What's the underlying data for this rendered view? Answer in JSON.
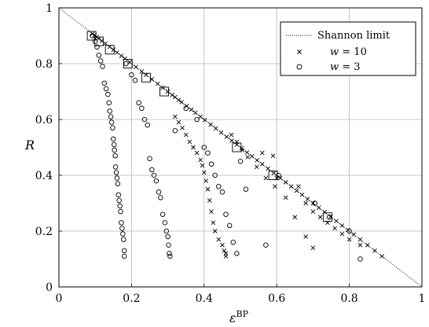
{
  "chart_data": {
    "type": "scatter",
    "title": "",
    "xlabel": "ε",
    "xlabel_sup": "BP",
    "ylabel": "R",
    "xlim": [
      0,
      1
    ],
    "ylim": [
      0,
      1
    ],
    "x_ticks": [
      "0",
      "0.2",
      "0.4",
      "0.6",
      "0.8",
      "1"
    ],
    "y_ticks": [
      "0",
      "0.2",
      "0.4",
      "0.6",
      "0.8",
      "1"
    ],
    "grid": true,
    "legend_position": "top-right",
    "legend": {
      "shannon": "Shannon limit",
      "w10_var": "w",
      "w10_rest": " = 10",
      "w3_var": "w",
      "w3_rest": " = 3"
    },
    "series": [
      {
        "name": "Shannon limit",
        "kind": "line",
        "x": [
          0,
          1
        ],
        "y": [
          1,
          0
        ]
      },
      {
        "name": "w = 10",
        "kind": "marker-x",
        "x": [
          0.092,
          0.098,
          0.104,
          0.11,
          0.118,
          0.128,
          0.14,
          0.15,
          0.16,
          0.172,
          0.182,
          0.195,
          0.212,
          0.228,
          0.24,
          0.256,
          0.272,
          0.286,
          0.3,
          0.312,
          0.32,
          0.33,
          0.338,
          0.352,
          0.365,
          0.376,
          0.39,
          0.402,
          0.418,
          0.432,
          0.447,
          0.462,
          0.476,
          0.49,
          0.503,
          0.518,
          0.532,
          0.546,
          0.56,
          0.576,
          0.592,
          0.61,
          0.625,
          0.64,
          0.655,
          0.67,
          0.685,
          0.7,
          0.716,
          0.732,
          0.748,
          0.764,
          0.78,
          0.796,
          0.812,
          0.83,
          0.85,
          0.87,
          0.89,
          0.32,
          0.33,
          0.34,
          0.35,
          0.36,
          0.37,
          0.38,
          0.39,
          0.395,
          0.4,
          0.405,
          0.41,
          0.415,
          0.42,
          0.425,
          0.43,
          0.44,
          0.45,
          0.455,
          0.46,
          0.46,
          0.475,
          0.49,
          0.505,
          0.52,
          0.545,
          0.57,
          0.595,
          0.625,
          0.65,
          0.68,
          0.7,
          0.56,
          0.59,
          0.6,
          0.66,
          0.68,
          0.7,
          0.72,
          0.74,
          0.76,
          0.78,
          0.8,
          0.83
        ],
        "y": [
          0.907,
          0.902,
          0.896,
          0.89,
          0.882,
          0.872,
          0.86,
          0.85,
          0.84,
          0.828,
          0.818,
          0.805,
          0.788,
          0.772,
          0.76,
          0.744,
          0.728,
          0.714,
          0.7,
          0.688,
          0.68,
          0.67,
          0.662,
          0.648,
          0.635,
          0.624,
          0.61,
          0.598,
          0.582,
          0.568,
          0.553,
          0.538,
          0.524,
          0.51,
          0.497,
          0.482,
          0.468,
          0.454,
          0.44,
          0.424,
          0.408,
          0.39,
          0.375,
          0.36,
          0.345,
          0.33,
          0.315,
          0.3,
          0.284,
          0.268,
          0.252,
          0.236,
          0.22,
          0.204,
          0.188,
          0.17,
          0.15,
          0.13,
          0.11,
          0.61,
          0.59,
          0.57,
          0.545,
          0.52,
          0.5,
          0.48,
          0.455,
          0.435,
          0.41,
          0.38,
          0.35,
          0.31,
          0.27,
          0.23,
          0.2,
          0.17,
          0.15,
          0.13,
          0.11,
          0.12,
          0.545,
          0.52,
          0.49,
          0.465,
          0.43,
          0.39,
          0.36,
          0.32,
          0.25,
          0.18,
          0.14,
          0.48,
          0.47,
          0.39,
          0.36,
          0.3,
          0.27,
          0.25,
          0.23,
          0.21,
          0.19,
          0.17,
          0.15
        ]
      },
      {
        "name": "w = 3",
        "kind": "marker-o",
        "x": [
          0.092,
          0.1,
          0.105,
          0.11,
          0.115,
          0.12,
          0.125,
          0.13,
          0.135,
          0.138,
          0.14,
          0.143,
          0.145,
          0.148,
          0.15,
          0.152,
          0.153,
          0.155,
          0.156,
          0.158,
          0.16,
          0.162,
          0.164,
          0.166,
          0.168,
          0.17,
          0.172,
          0.174,
          0.176,
          0.178,
          0.18,
          0.18,
          0.185,
          0.2,
          0.21,
          0.22,
          0.228,
          0.236,
          0.244,
          0.25,
          0.256,
          0.262,
          0.268,
          0.275,
          0.28,
          0.286,
          0.292,
          0.296,
          0.3,
          0.302,
          0.304,
          0.306,
          0.32,
          0.35,
          0.38,
          0.4,
          0.41,
          0.42,
          0.43,
          0.44,
          0.45,
          0.46,
          0.47,
          0.48,
          0.49,
          0.5,
          0.515,
          0.57,
          0.605,
          0.705,
          0.745,
          0.8,
          0.83
        ],
        "y": [
          0.9,
          0.88,
          0.86,
          0.83,
          0.81,
          0.79,
          0.73,
          0.71,
          0.69,
          0.66,
          0.63,
          0.61,
          0.59,
          0.57,
          0.53,
          0.51,
          0.49,
          0.47,
          0.43,
          0.41,
          0.39,
          0.37,
          0.33,
          0.31,
          0.29,
          0.27,
          0.23,
          0.21,
          0.19,
          0.17,
          0.13,
          0.11,
          0.8,
          0.76,
          0.74,
          0.66,
          0.64,
          0.6,
          0.58,
          0.46,
          0.42,
          0.4,
          0.38,
          0.34,
          0.32,
          0.26,
          0.23,
          0.2,
          0.18,
          0.15,
          0.12,
          0.11,
          0.56,
          0.64,
          0.6,
          0.5,
          0.48,
          0.44,
          0.4,
          0.36,
          0.34,
          0.26,
          0.22,
          0.16,
          0.12,
          0.45,
          0.35,
          0.15,
          0.4,
          0.3,
          0.25,
          0.2,
          0.1
        ]
      },
      {
        "name": "",
        "kind": "marker-square",
        "x": [
          0.09,
          0.11,
          0.14,
          0.19,
          0.24,
          0.29,
          0.49,
          0.59,
          0.74
        ],
        "y": [
          0.9,
          0.88,
          0.85,
          0.8,
          0.75,
          0.7,
          0.5,
          0.4,
          0.25
        ]
      }
    ]
  }
}
